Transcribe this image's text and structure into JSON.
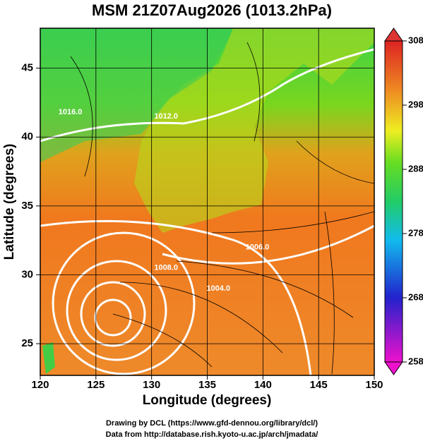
{
  "chart_data": {
    "type": "map",
    "title": "MSM 21Z07Aug2026 (1013.2hPa)",
    "xlabel": "Longitude (degrees)",
    "ylabel": "Latitude  (degrees)",
    "xlim": [
      120,
      150
    ],
    "ylim": [
      22.7,
      47.9
    ],
    "xticks": [
      120,
      125,
      130,
      135,
      140,
      145,
      150
    ],
    "yticks": [
      25,
      30,
      35,
      40,
      45
    ],
    "grid": true,
    "colorbar": {
      "lim": [
        258,
        308
      ],
      "ticks": [
        258,
        268,
        278,
        288,
        298,
        308
      ]
    },
    "contour_labels": [
      {
        "lon": 122.7,
        "lat": 41.8,
        "label": "1016.0"
      },
      {
        "lon": 131.3,
        "lat": 41.5,
        "label": "1012.0"
      },
      {
        "lon": 139.5,
        "lat": 32.0,
        "label": "1006.0"
      },
      {
        "lon": 131.3,
        "lat": 30.5,
        "label": "1008.0"
      },
      {
        "lon": 136.0,
        "lat": 29.0,
        "label": "1004.0"
      }
    ],
    "footer": [
      "Drawing by DCL (https://www.gfd-dennou.org/library/dcl/)",
      "Data from http://database.rish.kyoto-u.ac.jp/arch/jmadata/"
    ]
  }
}
